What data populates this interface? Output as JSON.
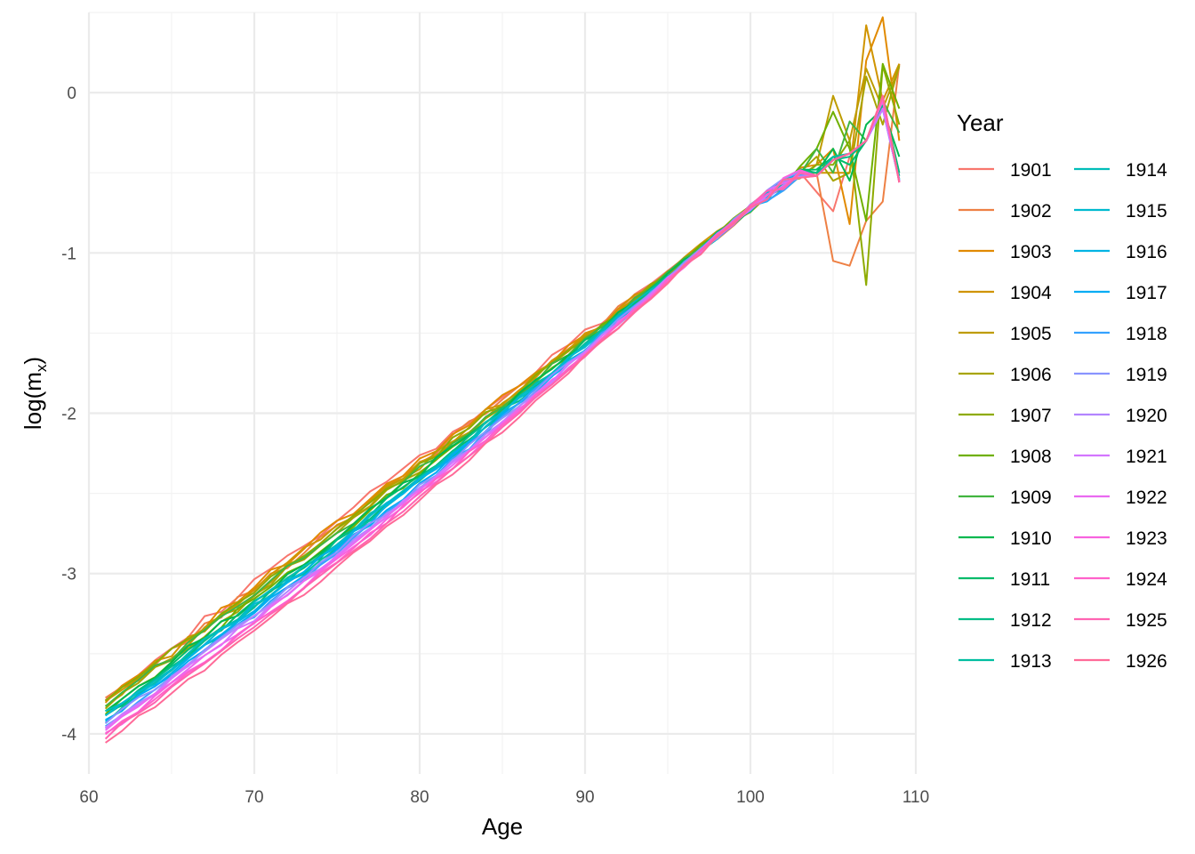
{
  "chart_data": {
    "type": "line",
    "xlabel": "Age",
    "ylabel": "log(m",
    "ylabel_subscript": "x",
    "ylabel_close": ")",
    "xlim": [
      60,
      110
    ],
    "ylim": [
      -4.25,
      0.5
    ],
    "x_ticks": [
      60,
      70,
      80,
      90,
      100,
      110
    ],
    "y_ticks": [
      0,
      -1,
      -2,
      -3,
      -4
    ],
    "x_tick_labels": [
      "60",
      "70",
      "80",
      "90",
      "100",
      "110"
    ],
    "y_tick_labels": [
      "0",
      "-1",
      "-2",
      "-3",
      "-4"
    ],
    "grid": true,
    "legend": {
      "title": "Year",
      "placement": "right",
      "columns": 2
    },
    "x": [
      61,
      62,
      63,
      64,
      65,
      66,
      67,
      68,
      69,
      70,
      71,
      72,
      73,
      74,
      75,
      76,
      77,
      78,
      79,
      80,
      81,
      82,
      83,
      84,
      85,
      86,
      87,
      88,
      89,
      90,
      91,
      92,
      93,
      94,
      95,
      96,
      97,
      98,
      99,
      100,
      101,
      102,
      103,
      104,
      105,
      106,
      107,
      108,
      109
    ],
    "series_note_start": -3.77,
    "series": [
      {
        "name": "1901",
        "color": "#F8766D",
        "start": -3.76,
        "end_tail": [
          -0.62,
          -0.74,
          -0.4,
          -0.3,
          -0.05,
          -0.55
        ]
      },
      {
        "name": "1902",
        "color": "#EE8044",
        "start": -3.8,
        "end_tail": [
          -0.5,
          -1.05,
          -1.08,
          -0.8,
          -0.68,
          0.18
        ]
      },
      {
        "name": "1903",
        "color": "#E18A00",
        "start": -3.78,
        "end_tail": [
          -0.45,
          -0.35,
          -0.82,
          0.2,
          0.47,
          -0.3
        ]
      },
      {
        "name": "1904",
        "color": "#D09400",
        "start": -3.8,
        "end_tail": [
          -0.5,
          -0.5,
          -0.5,
          0.42,
          -0.05,
          0.18
        ]
      },
      {
        "name": "1905",
        "color": "#BE9C00",
        "start": -3.82,
        "end_tail": [
          -0.45,
          -0.02,
          -0.3,
          0.15,
          -0.1,
          0.16
        ]
      },
      {
        "name": "1906",
        "color": "#A8A400",
        "start": -3.84,
        "end_tail": [
          -0.4,
          -0.55,
          -0.5,
          0.1,
          -0.2,
          0.17
        ]
      },
      {
        "name": "1907",
        "color": "#8EAB00",
        "start": -3.8,
        "end_tail": [
          -0.45,
          -0.45,
          -0.3,
          -1.2,
          0.17,
          -0.2
        ]
      },
      {
        "name": "1908",
        "color": "#6FB000",
        "start": -3.86,
        "end_tail": [
          -0.35,
          -0.12,
          -0.35,
          -0.8,
          0.18,
          -0.1
        ]
      },
      {
        "name": "1909",
        "color": "#42B540",
        "start": -3.82,
        "end_tail": [
          -0.35,
          -0.5,
          -0.18,
          -0.3,
          -0.05,
          -0.25
        ]
      },
      {
        "name": "1910",
        "color": "#00B84F",
        "start": -3.86,
        "end_tail": [
          -0.5,
          -0.35,
          -0.55,
          -0.2,
          -0.1,
          -0.4
        ]
      },
      {
        "name": "1911",
        "color": "#00BB6A",
        "start": -3.88,
        "end_tail": [
          -0.48,
          -0.4,
          -0.45,
          -0.3,
          -0.05,
          -0.5
        ]
      },
      {
        "name": "1912",
        "color": "#00BD86",
        "start": -3.9,
        "end_tail": [
          -0.5,
          -0.42,
          -0.4,
          -0.3,
          -0.08,
          -0.52
        ]
      },
      {
        "name": "1913",
        "color": "#00BEA0",
        "start": -3.92,
        "end_tail": [
          -0.52,
          -0.4,
          -0.38,
          -0.3,
          -0.1,
          -0.54
        ]
      },
      {
        "name": "1914",
        "color": "#00BDB8",
        "start": -3.88,
        "end_tail": [
          -0.52,
          -0.42,
          -0.38,
          -0.3,
          -0.1,
          -0.55
        ]
      },
      {
        "name": "1915",
        "color": "#00BACF",
        "start": -3.9,
        "end_tail": [
          -0.52,
          -0.42,
          -0.38,
          -0.3,
          -0.1,
          -0.55
        ]
      },
      {
        "name": "1916",
        "color": "#00B4E4",
        "start": -3.92,
        "end_tail": [
          -0.52,
          -0.42,
          -0.38,
          -0.3,
          -0.1,
          -0.55
        ]
      },
      {
        "name": "1917",
        "color": "#00ACF4",
        "start": -3.93,
        "end_tail": [
          -0.52,
          -0.42,
          -0.38,
          -0.3,
          -0.1,
          -0.55
        ]
      },
      {
        "name": "1918",
        "color": "#35A2FF",
        "start": -3.95,
        "end_tail": [
          -0.52,
          -0.42,
          -0.38,
          -0.3,
          -0.1,
          -0.55
        ]
      },
      {
        "name": "1919",
        "color": "#8994FF",
        "start": -3.94,
        "end_tail": [
          -0.52,
          -0.42,
          -0.38,
          -0.3,
          -0.1,
          -0.55
        ]
      },
      {
        "name": "1920",
        "color": "#B385FF",
        "start": -3.96,
        "end_tail": [
          -0.52,
          -0.42,
          -0.38,
          -0.3,
          -0.1,
          -0.55
        ]
      },
      {
        "name": "1921",
        "color": "#D376FF",
        "start": -3.97,
        "end_tail": [
          -0.52,
          -0.42,
          -0.38,
          -0.3,
          -0.1,
          -0.55
        ]
      },
      {
        "name": "1922",
        "color": "#EA6AF1",
        "start": -3.98,
        "end_tail": [
          -0.52,
          -0.42,
          -0.38,
          -0.3,
          -0.05,
          -0.56
        ]
      },
      {
        "name": "1923",
        "color": "#F863DF",
        "start": -4.0,
        "end_tail": [
          -0.52,
          -0.42,
          -0.38,
          -0.3,
          -0.05,
          -0.56
        ]
      },
      {
        "name": "1924",
        "color": "#FF61CA",
        "start": -4.0,
        "end_tail": [
          -0.52,
          -0.42,
          -0.38,
          -0.3,
          -0.03,
          -0.56
        ]
      },
      {
        "name": "1925",
        "color": "#FF64B2",
        "start": -4.02,
        "end_tail": [
          -0.52,
          -0.42,
          -0.38,
          -0.3,
          -0.02,
          -0.56
        ]
      },
      {
        "name": "1926",
        "color": "#FF6A98",
        "start": -4.05,
        "end_tail": [
          -0.52,
          -0.42,
          -0.38,
          -0.3,
          -0.02,
          -0.56
        ]
      }
    ]
  }
}
